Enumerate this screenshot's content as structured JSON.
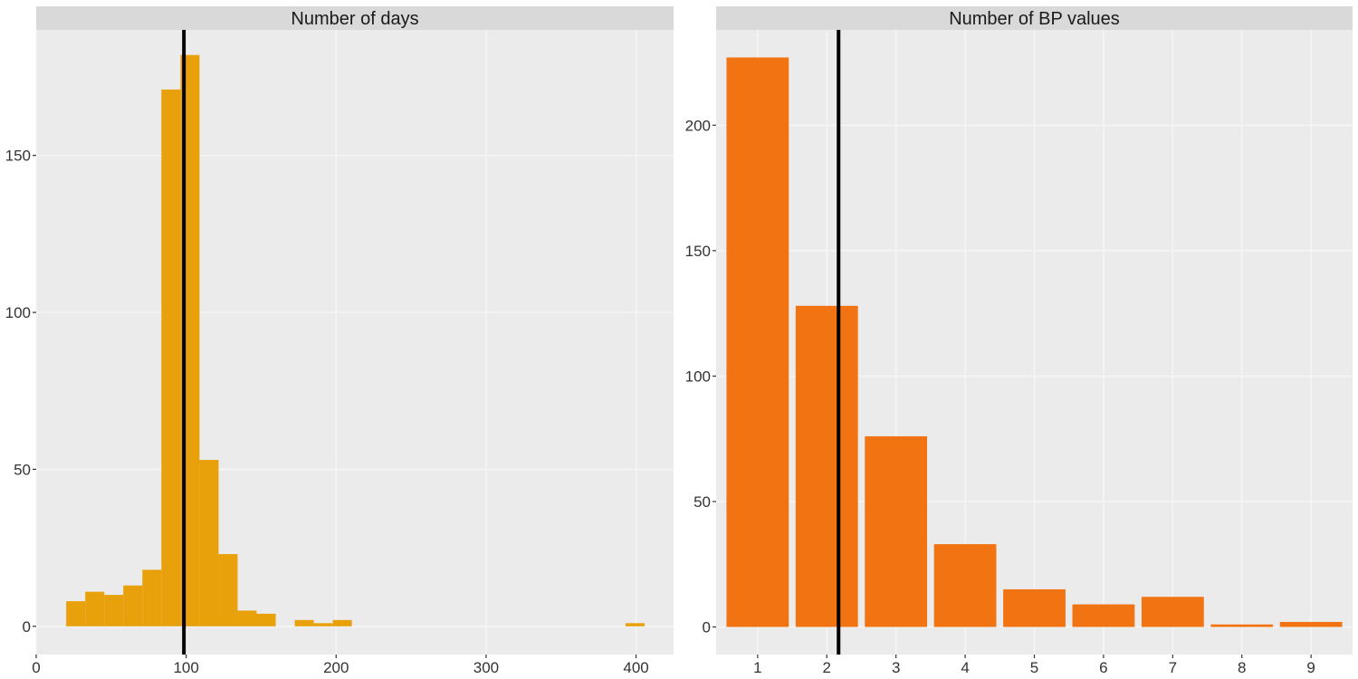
{
  "colors": {
    "panel_bg": "#EBEBEB",
    "strip_bg": "#D9D9D9",
    "days_fill": "#E8A10A",
    "bp_fill": "#F27311",
    "vline": "#000000",
    "grid": "#F5F5F5"
  },
  "chart_data": [
    {
      "type": "bar",
      "subtype": "histogram",
      "title": "Number of days",
      "xlabel": "",
      "ylabel": "",
      "xlim": [
        0,
        425
      ],
      "ylim": [
        -9,
        190
      ],
      "xticks": [
        0,
        100,
        200,
        300,
        400
      ],
      "yticks": [
        0,
        50,
        100,
        150
      ],
      "bin_width": 12.7,
      "bins": [
        {
          "x0": 20,
          "count": 8
        },
        {
          "x0": 32.7,
          "count": 11
        },
        {
          "x0": 45.4,
          "count": 10
        },
        {
          "x0": 58.1,
          "count": 13
        },
        {
          "x0": 70.8,
          "count": 18
        },
        {
          "x0": 83.5,
          "count": 171
        },
        {
          "x0": 96.2,
          "count": 182
        },
        {
          "x0": 108.9,
          "count": 53
        },
        {
          "x0": 121.6,
          "count": 23
        },
        {
          "x0": 134.3,
          "count": 5
        },
        {
          "x0": 147.0,
          "count": 4
        },
        {
          "x0": 172.4,
          "count": 2
        },
        {
          "x0": 185.1,
          "count": 1
        },
        {
          "x0": 197.8,
          "count": 2
        },
        {
          "x0": 393.0,
          "count": 1
        }
      ],
      "vline": 98.5,
      "grid": true,
      "legend": "none"
    },
    {
      "type": "bar",
      "title": "Number of BP values",
      "xlabel": "",
      "ylabel": "",
      "xlim": [
        0.4,
        9.6
      ],
      "ylim": [
        -11,
        238
      ],
      "categories": [
        "1",
        "2",
        "3",
        "4",
        "5",
        "6",
        "7",
        "8",
        "9"
      ],
      "values": [
        227,
        128,
        76,
        33,
        15,
        9,
        12,
        1,
        2
      ],
      "yticks": [
        0,
        50,
        100,
        150,
        200
      ],
      "vline": 2.17,
      "grid": true,
      "legend": "none"
    }
  ]
}
